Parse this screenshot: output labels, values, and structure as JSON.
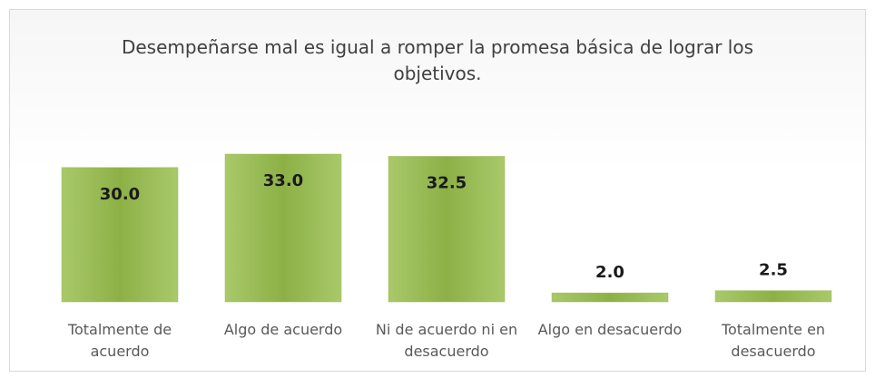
{
  "chart_data": {
    "type": "bar",
    "title": "Desempeñarse mal es igual a romper la promesa básica de lograr los objetivos.",
    "categories": [
      "Totalmente de acuerdo",
      "Algo de acuerdo",
      "Ni de acuerdo ni en desacuerdo",
      "Algo en desacuerdo",
      "Totalmente en desacuerdo"
    ],
    "values": [
      30.0,
      33.0,
      32.5,
      2.0,
      2.5
    ],
    "value_labels": [
      "30.0",
      "33.0",
      "32.5",
      "2.0",
      "2.5"
    ],
    "color": "#9bbb59"
  }
}
